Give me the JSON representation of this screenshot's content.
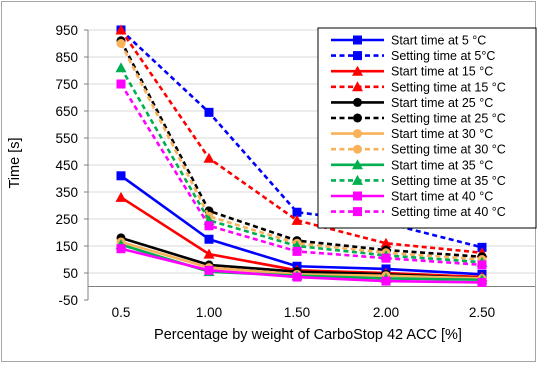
{
  "chart_data": {
    "type": "line",
    "xlabel": "Percentage by weight of CarboStop 42 ACC [%]",
    "ylabel": "Time [s]",
    "ylim": [
      -50,
      950
    ],
    "yticks": [
      "-50",
      "50",
      "150",
      "250",
      "350",
      "450",
      "550",
      "650",
      "750",
      "850",
      "950"
    ],
    "ytick_values": [
      -50,
      50,
      150,
      250,
      350,
      450,
      550,
      650,
      750,
      850,
      950
    ],
    "categories": [
      "0.5",
      "1.00",
      "1.50",
      "2.00",
      "2.50"
    ],
    "grid": "horizontal",
    "legend_position": "top-right",
    "series": [
      {
        "name": "Start time at 5 °C",
        "color": "#0000ff",
        "dash": "solid",
        "marker": "square",
        "values": [
          410,
          175,
          75,
          65,
          45
        ]
      },
      {
        "name": "Setting time at 5°C",
        "color": "#0000ff",
        "dash": "dashed",
        "marker": "square",
        "values": [
          950,
          645,
          275,
          235,
          145
        ]
      },
      {
        "name": "Start time at 15 °C",
        "color": "#ff0000",
        "dash": "solid",
        "marker": "triangle",
        "values": [
          330,
          120,
          60,
          50,
          35
        ]
      },
      {
        "name": "Setting time at 15 °C",
        "color": "#ff0000",
        "dash": "dashed",
        "marker": "triangle",
        "values": [
          950,
          475,
          245,
          160,
          125
        ]
      },
      {
        "name": "Start time at 25 °C",
        "color": "#000000",
        "dash": "solid",
        "marker": "circle",
        "values": [
          180,
          80,
          55,
          45,
          30
        ]
      },
      {
        "name": "Setting time at 25 °C",
        "color": "#000000",
        "dash": "dashed",
        "marker": "circle",
        "values": [
          910,
          280,
          170,
          135,
          110
        ]
      },
      {
        "name": "Start time at 30 °C",
        "color": "#f9b25a",
        "dash": "solid",
        "marker": "circle",
        "values": [
          165,
          70,
          45,
          40,
          30
        ]
      },
      {
        "name": "Setting time at 30 °C",
        "color": "#f9b25a",
        "dash": "dashed",
        "marker": "circle",
        "values": [
          900,
          260,
          160,
          125,
          100
        ]
      },
      {
        "name": "Start time at 35 °C",
        "color": "#00b050",
        "dash": "solid",
        "marker": "triangle",
        "values": [
          155,
          55,
          40,
          30,
          25
        ]
      },
      {
        "name": "Setting time at 35 °C",
        "color": "#00b050",
        "dash": "dashed",
        "marker": "triangle",
        "values": [
          810,
          245,
          150,
          115,
          90
        ]
      },
      {
        "name": "Start time at 40 °C",
        "color": "#ff00ff",
        "dash": "solid",
        "marker": "square",
        "values": [
          140,
          60,
          35,
          20,
          15
        ]
      },
      {
        "name": "Setting time at 40 °C",
        "color": "#ff00ff",
        "dash": "dashed",
        "marker": "square",
        "values": [
          750,
          225,
          130,
          105,
          80
        ]
      }
    ]
  }
}
